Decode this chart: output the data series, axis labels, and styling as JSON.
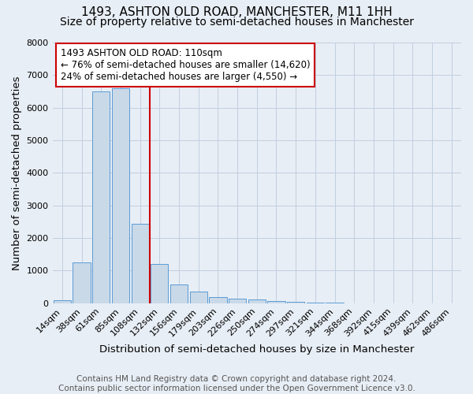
{
  "title": "1493, ASHTON OLD ROAD, MANCHESTER, M11 1HH",
  "subtitle": "Size of property relative to semi-detached houses in Manchester",
  "xlabel": "Distribution of semi-detached houses by size in Manchester",
  "ylabel": "Number of semi-detached properties",
  "footnote1": "Contains HM Land Registry data © Crown copyright and database right 2024.",
  "footnote2": "Contains public sector information licensed under the Open Government Licence v3.0.",
  "bar_labels": [
    "14sqm",
    "38sqm",
    "61sqm",
    "85sqm",
    "108sqm",
    "132sqm",
    "156sqm",
    "179sqm",
    "203sqm",
    "226sqm",
    "250sqm",
    "274sqm",
    "297sqm",
    "321sqm",
    "344sqm",
    "368sqm",
    "392sqm",
    "415sqm",
    "439sqm",
    "462sqm",
    "486sqm"
  ],
  "bar_values": [
    100,
    1250,
    6500,
    6600,
    2450,
    1200,
    570,
    350,
    200,
    130,
    110,
    80,
    40,
    20,
    10,
    5,
    5,
    2,
    1,
    1,
    0
  ],
  "bar_color": "#c9d9e8",
  "bar_edge_color": "#5b9bd5",
  "ylim": [
    0,
    8000
  ],
  "yticks": [
    0,
    1000,
    2000,
    3000,
    4000,
    5000,
    6000,
    7000,
    8000
  ],
  "property_line_color": "#cc0000",
  "annotation_text": "1493 ASHTON OLD ROAD: 110sqm\n← 76% of semi-detached houses are smaller (14,620)\n24% of semi-detached houses are larger (4,550) →",
  "annotation_box_color": "#ffffff",
  "annotation_box_edge_color": "#cc0000",
  "grid_color": "#c0cfe0",
  "background_color": "#e8eef5",
  "title_fontsize": 11,
  "subtitle_fontsize": 10,
  "axis_label_fontsize": 9.5,
  "tick_fontsize": 8,
  "annotation_fontsize": 8.5,
  "footnote_fontsize": 7.5
}
